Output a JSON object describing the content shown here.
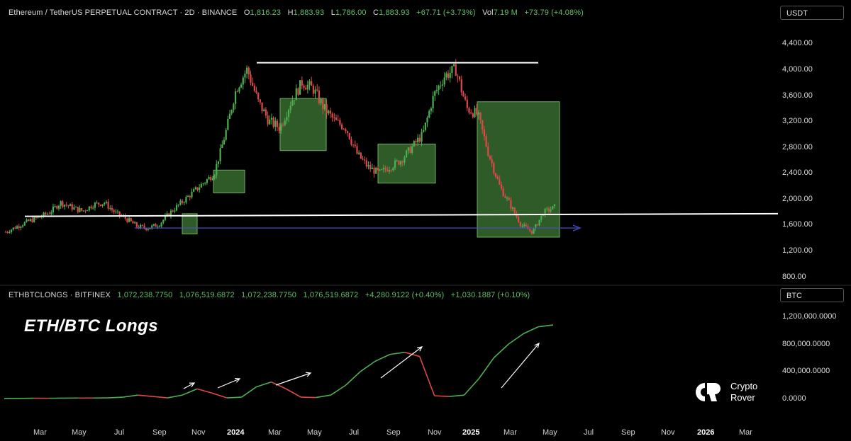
{
  "top_panel": {
    "symbol": "Ethereum / TetherUS PERPETUAL CONTRACT · 2D · BINANCE",
    "o_label": "O",
    "o": "1,816.23",
    "h_label": "H",
    "h": "1,883.93",
    "l_label": "L",
    "l": "1,786.00",
    "c_label": "C",
    "c": "1,883.93",
    "change": "+67.71 (+3.73%)",
    "vol_label": "Vol",
    "vol": "7.19 M",
    "vol_change": "+73.79 (+4.08%)",
    "unit": "USDT"
  },
  "bottom_panel": {
    "symbol": "ETHBTCLONGS · BITFINEX",
    "v1": "1,072,238.7750",
    "v2": "1,076,519.6872",
    "v3": "1,072,238.7750",
    "v4": "1,076,519.6872",
    "v5": "+4,280.9122 (+0.40%)",
    "v6": "+1,030.1887 (+0.10%)",
    "unit": "BTC",
    "overlay_title": "ETH/BTC Longs"
  },
  "logo": {
    "line1": "Crypto",
    "line2": "Rover"
  },
  "colors": {
    "bull": "#4caf50",
    "bear": "#e04848",
    "box_fill": "#3f7a36",
    "trend": "#ffffff",
    "arrow": "#4a4ad0"
  },
  "chart_data": [
    {
      "type": "line",
      "series": [
        {
          "values": [
            1500,
            1580,
            1660,
            1720,
            1800,
            1950,
            1880,
            1820,
            1920,
            1950,
            1790,
            1700,
            1580,
            1560,
            1620,
            1800,
            1950,
            2100,
            2250,
            2400,
            3000,
            3700,
            4000,
            3500,
            3200,
            3100,
            3500,
            3800,
            3700,
            3400,
            3200,
            3100,
            2700,
            2500,
            2400,
            2500,
            2600,
            2800,
            3000,
            3600,
            3900,
            4000,
            3400,
            3300,
            2700,
            2200,
            1900,
            1600,
            1500,
            1800,
            1880
          ]
        }
      ],
      "ylim": [
        800,
        4400
      ],
      "ytick_labels": [
        "4,400.00",
        "4,000.00",
        "3,600.00",
        "3,200.00",
        "2,800.00",
        "2,400.00",
        "2,000.00",
        "1,600.00",
        "1,200.00",
        "800.00"
      ],
      "horizontal_levels": [
        4100,
        1780,
        1560
      ],
      "boxes": [
        {
          "y": [
            1470,
            1780
          ]
        },
        {
          "y": [
            2100,
            2450
          ]
        },
        {
          "y": [
            2750,
            3550
          ]
        },
        {
          "y": [
            2250,
            2850
          ]
        },
        {
          "y": [
            1420,
            3500
          ]
        }
      ]
    },
    {
      "type": "line",
      "series": [
        {
          "values": [
            10000,
            12000,
            15000,
            14000,
            16000,
            18000,
            17000,
            20000,
            30000,
            60000,
            40000,
            20000,
            60000,
            150000,
            90000,
            20000,
            30000,
            180000,
            250000,
            150000,
            30000,
            25000,
            60000,
            200000,
            400000,
            550000,
            650000,
            680000,
            620000,
            50000,
            40000,
            60000,
            300000,
            600000,
            800000,
            950000,
            1050000,
            1076519
          ]
        }
      ],
      "ylim": [
        0,
        1200000
      ],
      "ytick_labels": [
        "1,200,000.0000",
        "800,000.0000",
        "400,000.0000",
        "0.0000"
      ]
    }
  ],
  "x_axis": [
    "Mar",
    "May",
    "Jul",
    "Sep",
    "Nov",
    "2024",
    "Mar",
    "May",
    "Jul",
    "Sep",
    "Nov",
    "2025",
    "Mar",
    "May",
    "Jul",
    "Sep",
    "Nov",
    "2026",
    "Mar"
  ]
}
